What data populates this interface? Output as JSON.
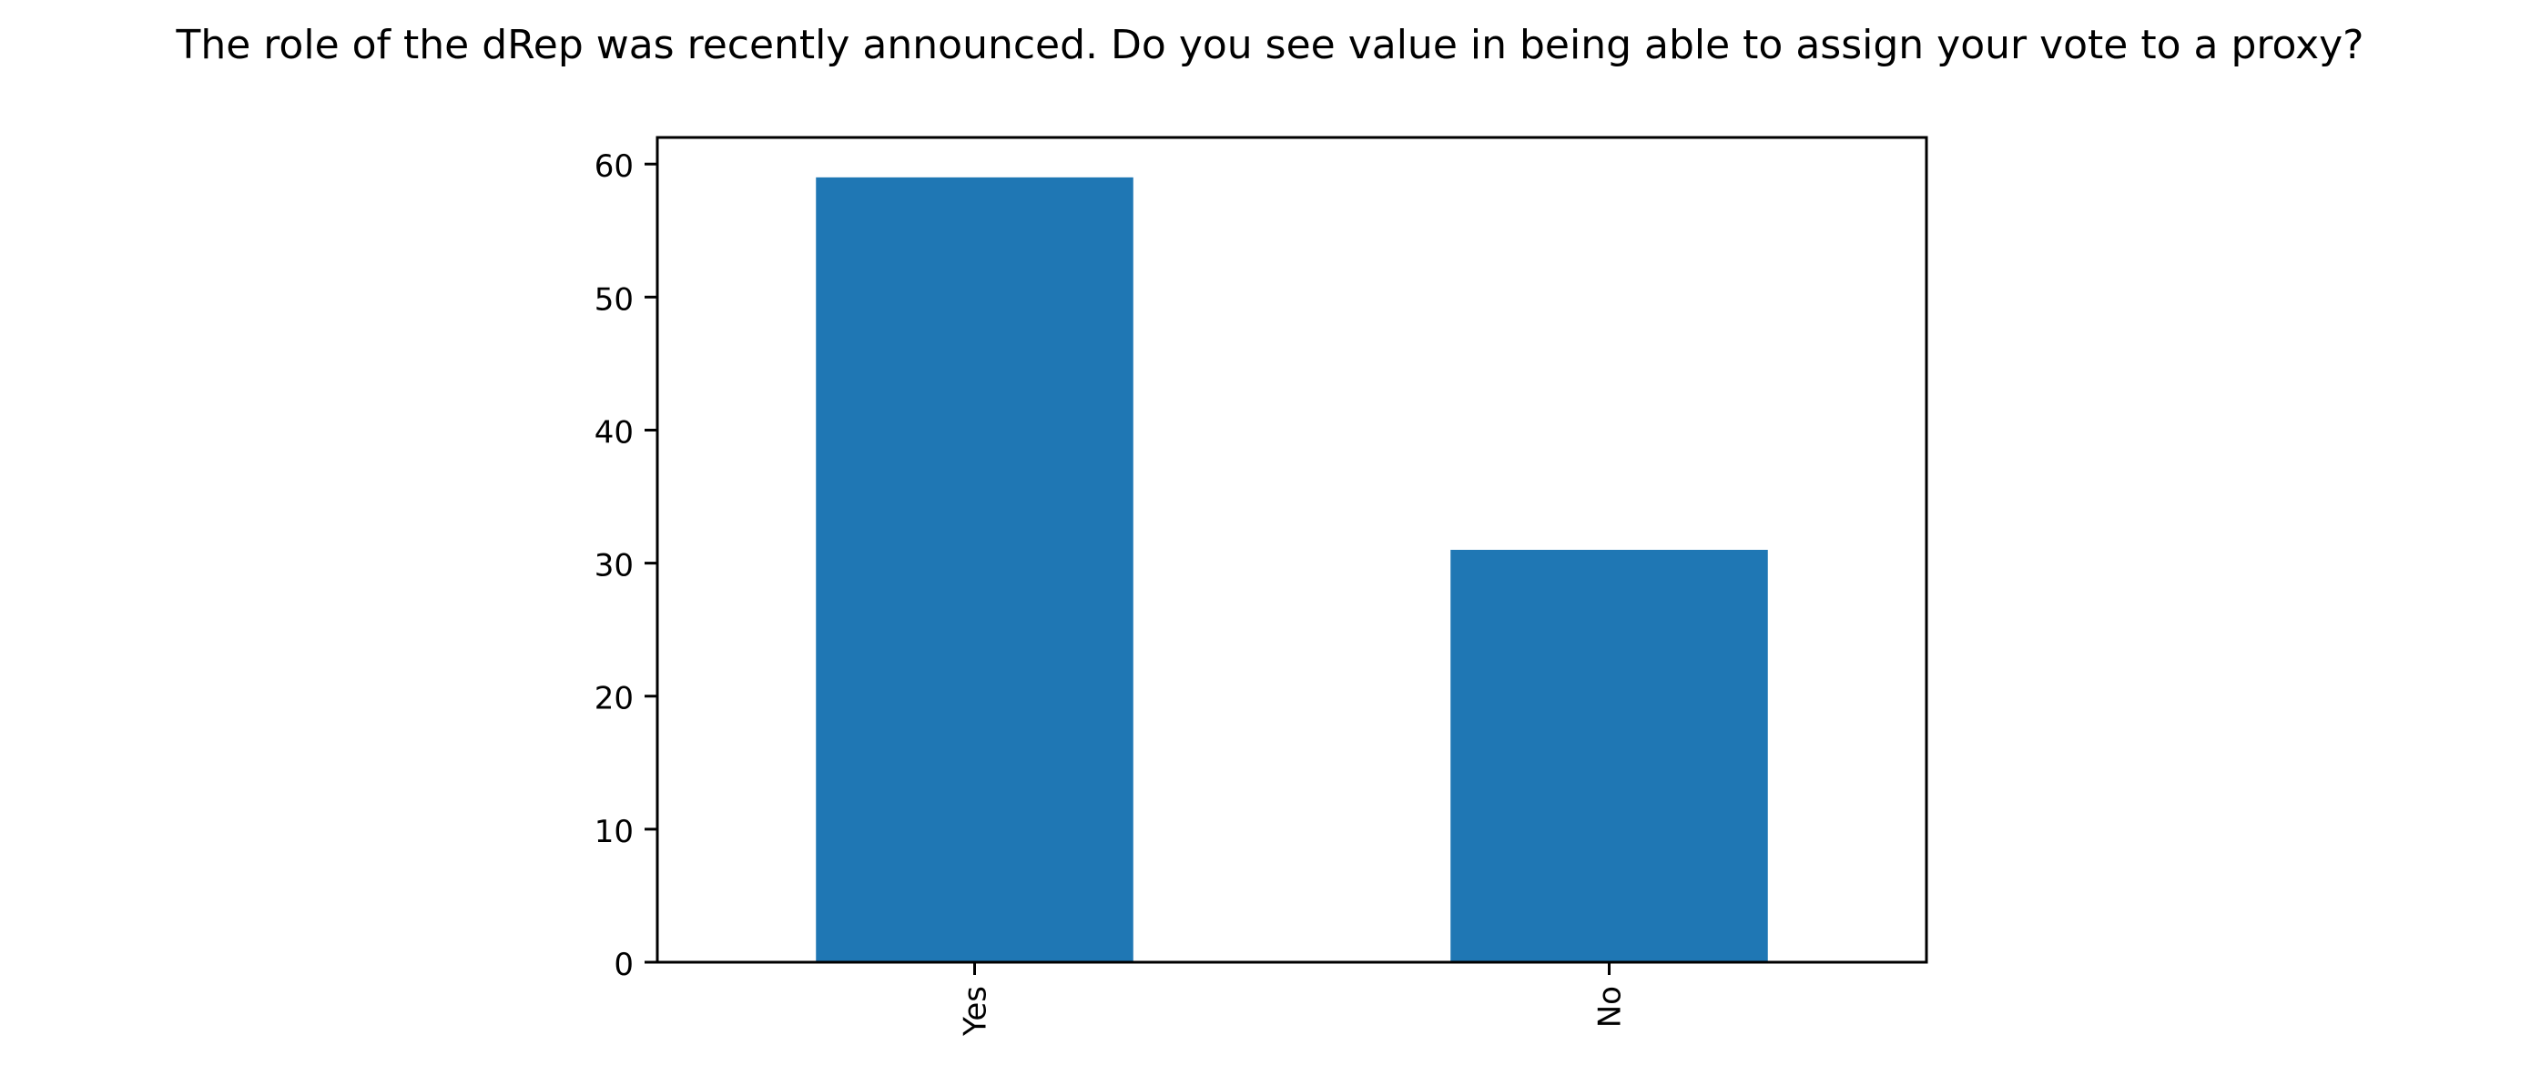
{
  "chart_data": {
    "type": "bar",
    "title": "The role of the dRep was recently announced. Do you see value in being able to assign your vote to a proxy?",
    "xlabel": "",
    "ylabel": "",
    "categories": [
      "Yes",
      "No"
    ],
    "values": [
      59,
      31
    ],
    "ylim": [
      0,
      62
    ],
    "yticks": [
      0,
      10,
      20,
      30,
      40,
      50,
      60
    ],
    "x_tick_rotation": 90,
    "grid": false,
    "legend": "none",
    "bar_color": "#1f77b4"
  }
}
